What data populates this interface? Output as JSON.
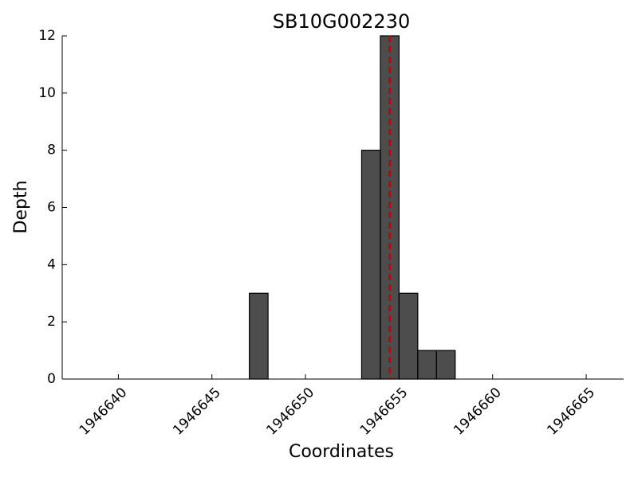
{
  "chart_data": {
    "type": "histogram",
    "title": "SB10G002230",
    "xlabel": "Coordinates",
    "ylabel": "Depth",
    "bins": [
      1946647,
      1946648,
      1946649,
      1946650,
      1946651,
      1946652,
      1946653,
      1946654,
      1946655,
      1946656,
      1946657,
      1946658
    ],
    "values": [
      3,
      0,
      0,
      0,
      0,
      0,
      8,
      12,
      3,
      1,
      1
    ],
    "color": "#4d4d4d",
    "xlim": [
      1946637,
      1946667
    ],
    "xticks": [
      1946640,
      1946645,
      1946650,
      1946655,
      1946660,
      1946665
    ],
    "ylim": [
      0,
      12
    ],
    "yticks": [
      0,
      2,
      4,
      6,
      8,
      10,
      12
    ],
    "marker_line": {
      "x": 1946654.5,
      "color": "#cc0000"
    }
  }
}
